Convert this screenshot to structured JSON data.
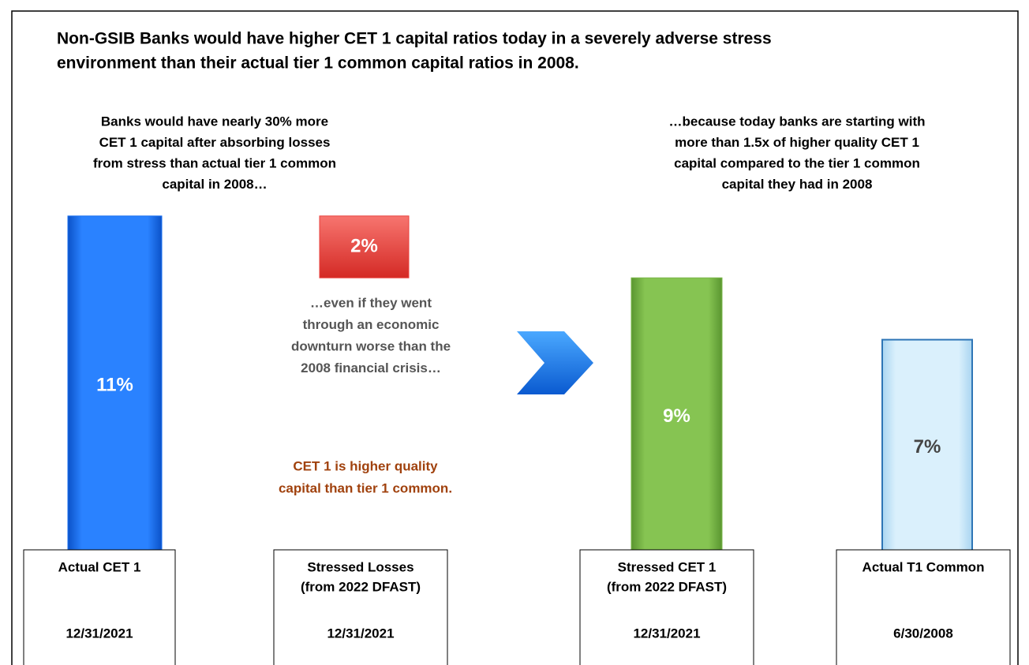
{
  "chart_data": {
    "type": "waterfall",
    "title": [
      "Non-GSIB Banks would have higher CET 1 capital ratios today in a severely adverse stress",
      "environment than their actual tier 1 common capital ratios in 2008."
    ],
    "annotations": {
      "left": [
        "Banks would have nearly 30% more",
        "CET 1 capital after absorbing losses",
        "from stress than actual tier 1 common",
        "capital in 2008…"
      ],
      "right": [
        "…because today banks are starting with",
        "more than 1.5x of higher quality CET 1",
        "capital compared to the tier 1 common",
        "capital they had in 2008"
      ],
      "middle": [
        "…even if they went",
        "through an economic",
        "downturn worse than the",
        "2008 financial crisis…"
      ],
      "note": [
        "CET 1 is higher quality",
        "capital than tier 1 common."
      ]
    },
    "categories": [
      [
        "Actual CET 1"
      ],
      [
        "Stressed Losses",
        "(from 2022 DFAST)"
      ],
      [
        "Stressed CET 1",
        "(from 2022 DFAST)"
      ],
      [
        "Actual T1 Common"
      ]
    ],
    "dates": [
      "12/31/2021",
      "12/31/2021",
      "12/31/2021",
      "6/30/2008"
    ],
    "values": [
      11,
      2,
      9,
      7
    ],
    "value_labels": [
      "11%",
      "2%",
      "9%",
      "7%"
    ],
    "kinds": [
      "total",
      "decrease",
      "total",
      "total"
    ],
    "colors": [
      "#1a6ff0",
      "#e8403c",
      "#7ab648",
      "#c9e6f7"
    ]
  }
}
